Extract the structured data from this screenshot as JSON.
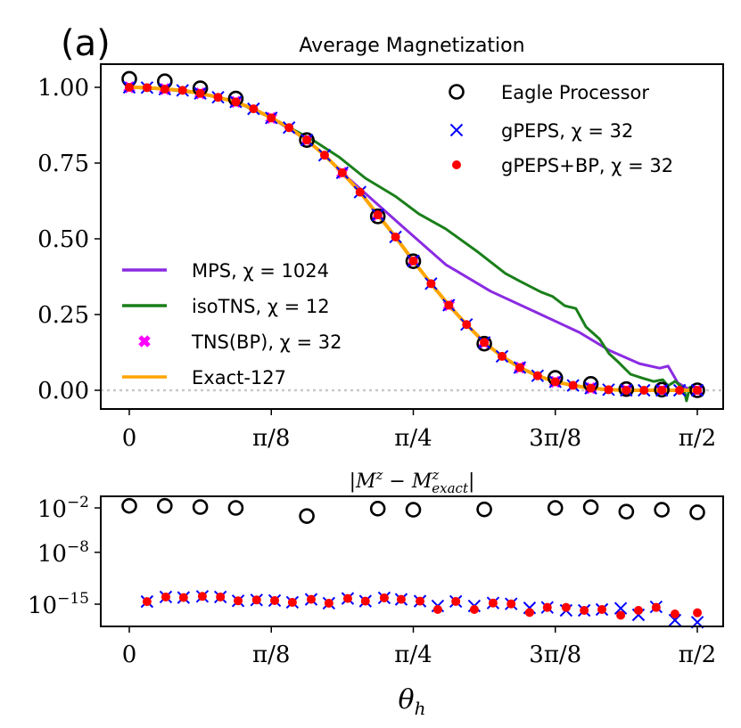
{
  "panel_label": "(a)",
  "chart_data": [
    {
      "type": "line",
      "title": "Average Magnetization",
      "xlabel": "",
      "ylabel": "",
      "xlim": [
        -0.079,
        1.642
      ],
      "ylim": [
        -0.062,
        1.076
      ],
      "xticks": [
        0,
        0.3927,
        0.7854,
        1.1781,
        1.5708
      ],
      "xtick_labels": [
        "0",
        "π/8",
        "π/4",
        "3π/8",
        "π/2"
      ],
      "yticks": [
        0,
        0.25,
        0.5,
        0.75,
        1.0
      ],
      "ytick_labels": [
        "0.00",
        "0.25",
        "0.50",
        "0.75",
        "1.00"
      ],
      "reference_line": {
        "y": 0,
        "style": "dotted",
        "color": "#c8c8c8"
      },
      "legends": [
        {
          "placement": "top-right",
          "entries": [
            "Eagle Processor",
            "gPEPS, χ = 32",
            "gPEPS+BP, χ = 32"
          ]
        },
        {
          "placement": "lower-left",
          "entries": [
            "MPS, χ = 1024",
            "isoTNS, χ = 12",
            "TNS(BP), χ = 32",
            "Exact-127"
          ]
        }
      ],
      "series": [
        {
          "name": "MPS, χ = 1024",
          "kind": "line",
          "color": "#8a2be2",
          "x": [
            0,
            0.0982,
            0.1963,
            0.2945,
            0.3927,
            0.4909,
            0.54,
            0.597,
            0.661,
            0.752,
            0.875,
            0.999,
            1.122,
            1.245,
            1.327,
            1.411,
            1.467,
            1.49,
            1.517,
            1.549,
            1.571
          ],
          "y": [
            1.0,
            0.994,
            0.98,
            0.952,
            0.899,
            0.826,
            0.776,
            0.709,
            0.641,
            0.544,
            0.415,
            0.327,
            0.259,
            0.191,
            0.132,
            0.088,
            0.073,
            0.08,
            0.024,
            0.003,
            0.0
          ]
        },
        {
          "name": "isoTNS, χ = 12",
          "kind": "line",
          "color": "#1a7f1a",
          "x": [
            0,
            0.0982,
            0.1963,
            0.2945,
            0.3927,
            0.4418,
            0.506,
            0.58,
            0.653,
            0.735,
            0.801,
            0.875,
            0.96,
            1.04,
            1.08,
            1.139,
            1.17,
            1.204,
            1.235,
            1.263,
            1.3,
            1.327,
            1.355,
            1.386,
            1.42,
            1.45,
            1.475,
            1.49,
            1.51,
            1.534,
            1.541,
            1.55,
            1.566
          ],
          "y": [
            1.0,
            0.994,
            0.98,
            0.952,
            0.899,
            0.868,
            0.827,
            0.77,
            0.7,
            0.641,
            0.582,
            0.533,
            0.46,
            0.386,
            0.36,
            0.324,
            0.31,
            0.279,
            0.27,
            0.209,
            0.17,
            0.121,
            0.09,
            0.053,
            0.04,
            0.029,
            0.035,
            0.015,
            0.03,
            0.003,
            -0.035,
            0.01,
            0.003
          ]
        },
        {
          "name": "TNS(BP), χ = 32",
          "kind": "marker-thick-x",
          "color": "#ff00ff",
          "x": [
            0,
            0.0982,
            0.1963,
            0.2945,
            0.3927,
            0.4909,
            0.589,
            0.6872,
            0.7854,
            0.8836,
            0.9817,
            1.0799,
            1.1781,
            1.2763,
            1.3744,
            1.4726,
            1.5708
          ],
          "y": [
            1.0,
            0.994,
            0.98,
            0.952,
            0.899,
            0.826,
            0.718,
            0.579,
            0.427,
            0.281,
            0.158,
            0.075,
            0.028,
            0.007,
            0.0,
            0.0,
            0.0
          ]
        },
        {
          "name": "Exact-127",
          "kind": "line",
          "color": "#ffa500",
          "x": [
            0,
            0.0491,
            0.0982,
            0.1473,
            0.1963,
            0.2454,
            0.2945,
            0.3436,
            0.3927,
            0.4418,
            0.4909,
            0.54,
            0.589,
            0.6381,
            0.6872,
            0.7363,
            0.7854,
            0.8345,
            0.8836,
            0.9327,
            0.9817,
            1.0308,
            1.0799,
            1.129,
            1.1781,
            1.2272,
            1.2763,
            1.3254,
            1.3744,
            1.4235,
            1.4726,
            1.5217,
            1.5708
          ],
          "y": [
            1.0,
            0.999,
            0.994,
            0.99,
            0.98,
            0.967,
            0.952,
            0.929,
            0.899,
            0.867,
            0.826,
            0.776,
            0.718,
            0.654,
            0.579,
            0.506,
            0.427,
            0.352,
            0.281,
            0.217,
            0.158,
            0.112,
            0.075,
            0.048,
            0.028,
            0.016,
            0.007,
            0.002,
            0.0,
            0.0,
            0.0,
            0.0,
            0.0
          ]
        },
        {
          "name": "Eagle Processor",
          "kind": "marker-circle",
          "color": "#000000",
          "x": [
            0,
            0.0982,
            0.1963,
            0.2945,
            0.4909,
            0.6872,
            0.7854,
            0.9817,
            1.1781,
            1.2763,
            1.3744,
            1.4726,
            1.5708
          ],
          "y": [
            1.028,
            1.02,
            0.997,
            0.963,
            0.826,
            0.574,
            0.426,
            0.154,
            0.041,
            0.021,
            0.004,
            0.002,
            0.0
          ]
        },
        {
          "name": "gPEPS, χ = 32",
          "kind": "marker-x",
          "color": "#0000ff",
          "x": [
            0,
            0.0491,
            0.0982,
            0.1473,
            0.1963,
            0.2454,
            0.2945,
            0.3436,
            0.3927,
            0.4418,
            0.4909,
            0.54,
            0.589,
            0.6381,
            0.6872,
            0.7363,
            0.7854,
            0.8345,
            0.8836,
            0.9327,
            0.9817,
            1.0308,
            1.0799,
            1.129,
            1.1781,
            1.2272,
            1.2763,
            1.3254,
            1.3744,
            1.4235,
            1.4726,
            1.5217,
            1.5708
          ],
          "y": [
            1.0,
            0.999,
            0.994,
            0.99,
            0.98,
            0.967,
            0.952,
            0.929,
            0.899,
            0.867,
            0.826,
            0.776,
            0.718,
            0.654,
            0.579,
            0.506,
            0.427,
            0.352,
            0.281,
            0.217,
            0.158,
            0.112,
            0.075,
            0.048,
            0.028,
            0.016,
            0.007,
            0.002,
            0.0,
            0.0,
            0.0,
            0.0,
            0.0
          ]
        },
        {
          "name": "gPEPS+BP, χ = 32",
          "kind": "marker-dot",
          "color": "#ff0000",
          "x": [
            0,
            0.0491,
            0.0982,
            0.1473,
            0.1963,
            0.2454,
            0.2945,
            0.3436,
            0.3927,
            0.4418,
            0.4909,
            0.54,
            0.589,
            0.6381,
            0.6872,
            0.7363,
            0.7854,
            0.8345,
            0.8836,
            0.9327,
            0.9817,
            1.0308,
            1.0799,
            1.129,
            1.1781,
            1.2272,
            1.2763,
            1.3254,
            1.3744,
            1.4235,
            1.4726,
            1.5217,
            1.5708
          ],
          "y": [
            1.0,
            0.999,
            0.994,
            0.99,
            0.98,
            0.967,
            0.952,
            0.929,
            0.899,
            0.867,
            0.826,
            0.776,
            0.718,
            0.654,
            0.579,
            0.506,
            0.427,
            0.352,
            0.281,
            0.217,
            0.158,
            0.112,
            0.075,
            0.048,
            0.028,
            0.016,
            0.007,
            0.002,
            0.0,
            0.0,
            0.0,
            0.0,
            0.0
          ]
        }
      ]
    },
    {
      "type": "scatter",
      "title": "|M^z − M^z_exact|",
      "xlabel": "θ_h",
      "ylabel": "",
      "yscale": "log",
      "xlim": [
        -0.079,
        1.642
      ],
      "ylim_log10": [
        -18.0,
        -0.44
      ],
      "xticks": [
        0,
        0.3927,
        0.7854,
        1.1781,
        1.5708
      ],
      "xtick_labels": [
        "0",
        "π/8",
        "π/4",
        "3π/8",
        "π/2"
      ],
      "yticks_log10": [
        -2,
        -8,
        -15
      ],
      "ytick_labels": [
        "10^-2",
        "10^-8",
        "10^-15"
      ],
      "series": [
        {
          "name": "Eagle Processor",
          "kind": "marker-circle",
          "color": "#000000",
          "x": [
            0,
            0.0982,
            0.1963,
            0.2945,
            0.4909,
            0.6872,
            0.7854,
            0.9817,
            1.1781,
            1.2763,
            1.3744,
            1.4726,
            1.5708
          ],
          "log10_y": [
            -1.72,
            -1.72,
            -1.88,
            -2.0,
            -3.1,
            -2.1,
            -2.25,
            -2.2,
            -2.0,
            -1.9,
            -2.5,
            -2.25,
            -2.6
          ]
        },
        {
          "name": "gPEPS, χ = 32",
          "kind": "marker-x",
          "color": "#0000ff",
          "x": [
            0.049,
            0.101,
            0.15,
            0.202,
            0.252,
            0.301,
            0.352,
            0.402,
            0.451,
            0.503,
            0.552,
            0.604,
            0.653,
            0.705,
            0.752,
            0.804,
            0.853,
            0.903,
            0.954,
            1.006,
            1.056,
            1.107,
            1.156,
            1.208,
            1.258,
            1.307,
            1.359,
            1.408,
            1.457,
            1.509,
            1.571
          ],
          "log10_y": [
            -14.65,
            -14.03,
            -14.11,
            -13.95,
            -14.03,
            -14.55,
            -14.43,
            -14.51,
            -14.75,
            -14.35,
            -14.87,
            -14.23,
            -14.59,
            -14.15,
            -14.35,
            -14.59,
            -15.24,
            -14.63,
            -15.24,
            -14.84,
            -14.96,
            -15.51,
            -15.44,
            -15.84,
            -15.84,
            -15.72,
            -15.56,
            -16.44,
            -15.36,
            -17.16,
            -17.44
          ]
        },
        {
          "name": "gPEPS+BP, χ = 32",
          "kind": "marker-dot",
          "color": "#ff0000",
          "x": [
            0.049,
            0.101,
            0.15,
            0.202,
            0.252,
            0.301,
            0.352,
            0.402,
            0.451,
            0.503,
            0.552,
            0.604,
            0.653,
            0.705,
            0.752,
            0.804,
            0.853,
            0.903,
            0.954,
            1.006,
            1.056,
            1.107,
            1.156,
            1.208,
            1.258,
            1.307,
            1.359,
            1.408,
            1.457,
            1.509,
            1.571
          ],
          "log10_y": [
            -14.65,
            -14.03,
            -14.11,
            -13.95,
            -14.03,
            -14.55,
            -14.43,
            -14.51,
            -14.75,
            -14.35,
            -14.87,
            -14.23,
            -14.59,
            -14.15,
            -14.35,
            -14.59,
            -15.72,
            -14.63,
            -15.72,
            -14.84,
            -14.96,
            -16.12,
            -15.44,
            -15.44,
            -15.84,
            -15.72,
            -16.5,
            -15.84,
            -15.44,
            -16.32,
            -16.16
          ]
        }
      ]
    }
  ]
}
